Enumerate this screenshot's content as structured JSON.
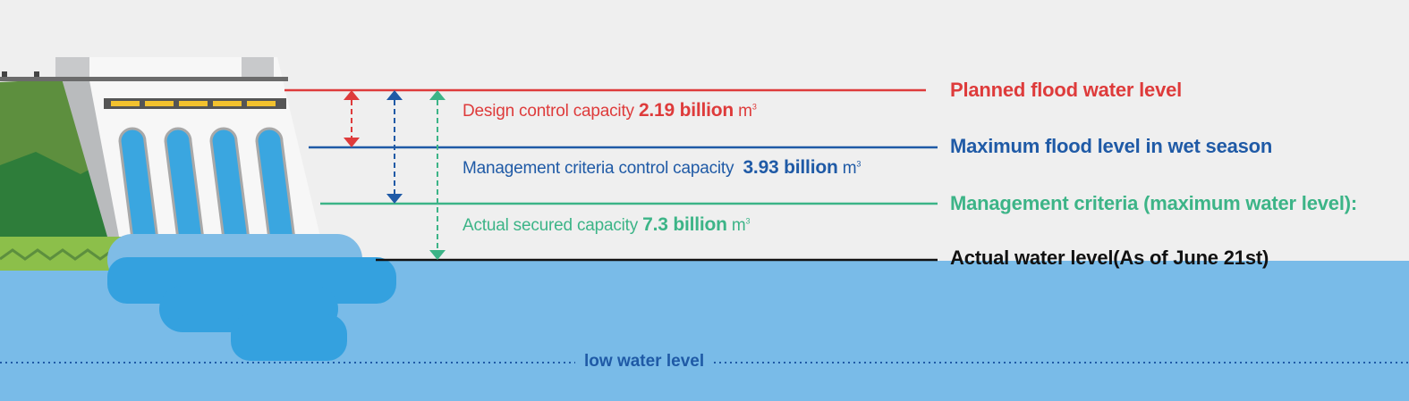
{
  "levels": {
    "planned": "Planned flood water level",
    "max_wet": "Maximum flood level in wet season",
    "criteria": "Management criteria (maximum water level):",
    "actual": "Actual water level(As of June 21st)",
    "low": "low water level"
  },
  "capacities": {
    "design": {
      "text": "Design control capacity",
      "value": "2.19 billion",
      "unit": "m",
      "sup": "3"
    },
    "management": {
      "text": "Management criteria control capacity",
      "value": "3.93 billion",
      "unit": "m",
      "sup": "3"
    },
    "secured": {
      "text": "Actual secured capacity",
      "value": "7.3 billion",
      "unit": "m",
      "sup": "3"
    }
  },
  "colors": {
    "red": "#de3b3b",
    "blue": "#1f5aa6",
    "green": "#3cb487",
    "black": "#111111",
    "water": "#79bbe8",
    "water_dark": "#34a1df"
  }
}
